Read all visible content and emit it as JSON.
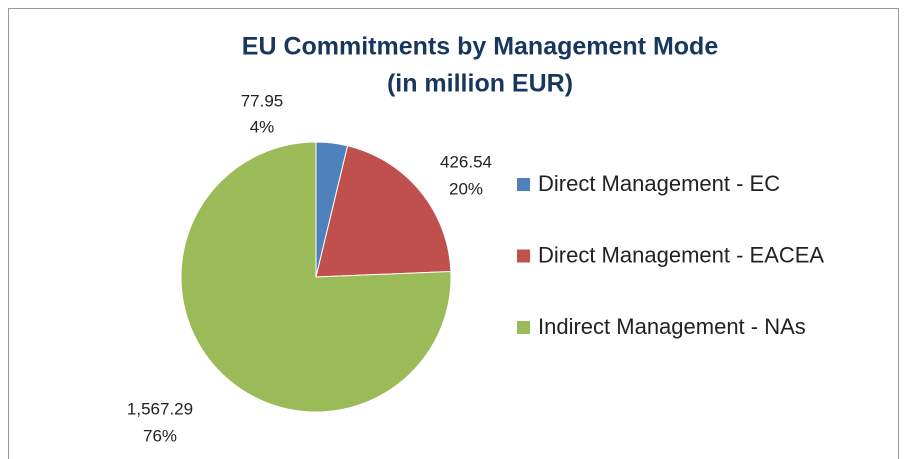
{
  "chart_data": {
    "type": "pie",
    "title": "EU Commitments by Management Mode",
    "subtitle": "(in million EUR)",
    "categories": [
      "Direct Management - EC",
      "Direct Management - EACEA",
      "Indirect Management - NAs"
    ],
    "values": [
      77.95,
      426.54,
      1567.29
    ],
    "value_labels": [
      "77.95",
      "426.54",
      "1,567.29"
    ],
    "percent_labels": [
      "4%",
      "20%",
      "76%"
    ],
    "colors": [
      "#4f81bd",
      "#c0504d",
      "#9bbb59"
    ],
    "legend": "right"
  }
}
